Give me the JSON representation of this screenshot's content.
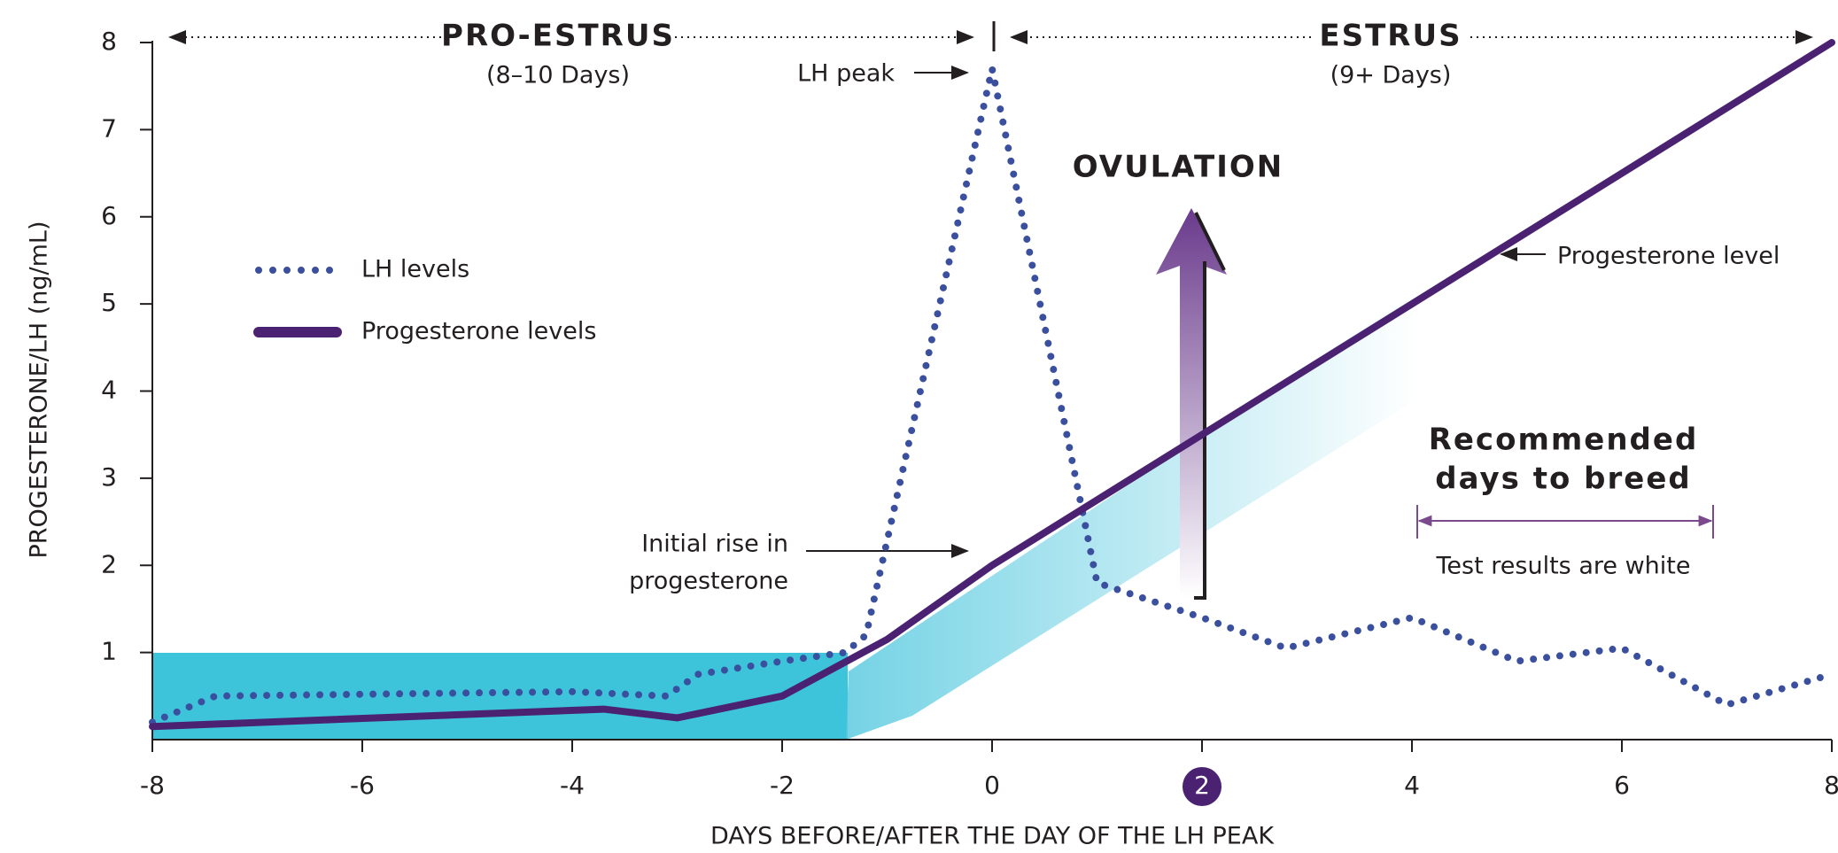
{
  "chart_data": {
    "type": "line",
    "ylabel": "PROGESTERONE/LH  (ng/mL)",
    "xlabel": "DAYS BEFORE/AFTER THE DAY OF THE LH PEAK",
    "xlim": [
      -8,
      8
    ],
    "xticks": [
      -8,
      -6,
      -4,
      -2,
      0,
      2,
      4,
      6,
      8
    ],
    "highlighted_xtick": 2,
    "ylim": [
      0,
      8
    ],
    "yticks": [
      1,
      2,
      3,
      4,
      5,
      6,
      7,
      8
    ],
    "series": [
      {
        "name": "LH levels",
        "color": "#3b4f9f",
        "style": "dotted",
        "x": [
          -8,
          -7.4,
          -4,
          -3.1,
          -2.8,
          -2,
          -1.4,
          -1.2,
          0,
          1,
          2,
          2.8,
          4,
          5,
          6,
          7,
          8
        ],
        "values": [
          0.2,
          0.5,
          0.55,
          0.5,
          0.75,
          0.9,
          1.0,
          1.2,
          7.7,
          1.8,
          1.4,
          1.05,
          1.4,
          0.9,
          1.05,
          0.4,
          0.75
        ]
      },
      {
        "name": "Progesterone levels",
        "color": "#4b2172",
        "style": "solid",
        "x": [
          -8,
          -3.7,
          -3,
          -2,
          -1,
          0,
          8
        ],
        "values": [
          0.15,
          0.35,
          0.25,
          0.5,
          1.15,
          2.0,
          8.0
        ]
      }
    ],
    "annotations": {
      "pro_estrus": "PRO-ESTRUS",
      "pro_estrus_days": "(8–10 Days)",
      "estrus": "ESTRUS",
      "estrus_days": "(9+ Days)",
      "lh_peak": "LH peak",
      "ovulation": "OVULATION",
      "progesterone_level": "Progesterone level",
      "breed_line1": "Recommended",
      "breed_line2": "days to breed",
      "test_results": "Test results are white",
      "initial_rise_line1": "Initial rise in",
      "initial_rise_line2": "progesterone"
    }
  }
}
